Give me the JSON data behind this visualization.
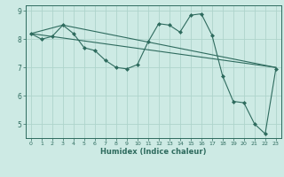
{
  "xlabel": "Humidex (Indice chaleur)",
  "x_values": [
    0,
    1,
    2,
    3,
    4,
    5,
    6,
    7,
    8,
    9,
    10,
    11,
    12,
    13,
    14,
    15,
    16,
    17,
    18,
    19,
    20,
    21,
    22,
    23
  ],
  "y_main": [
    8.2,
    8.0,
    8.1,
    8.5,
    8.2,
    7.7,
    7.6,
    7.25,
    7.0,
    6.95,
    7.1,
    7.9,
    8.55,
    8.5,
    8.25,
    8.85,
    8.9,
    8.15,
    6.7,
    5.8,
    5.75,
    5.0,
    4.65,
    6.95
  ],
  "line2_x": [
    0,
    23
  ],
  "line2_y": [
    8.2,
    7.0
  ],
  "line3_x": [
    0,
    3,
    23
  ],
  "line3_y": [
    8.2,
    8.5,
    7.0
  ],
  "line_color": "#2e6b5e",
  "bg_color": "#cdeae4",
  "grid_color": "#aed4cc",
  "xlim": [
    -0.5,
    23.5
  ],
  "ylim": [
    4.5,
    9.2
  ],
  "yticks": [
    5,
    6,
    7,
    8,
    9
  ],
  "xticks": [
    0,
    1,
    2,
    3,
    4,
    5,
    6,
    7,
    8,
    9,
    10,
    11,
    12,
    13,
    14,
    15,
    16,
    17,
    18,
    19,
    20,
    21,
    22,
    23
  ]
}
